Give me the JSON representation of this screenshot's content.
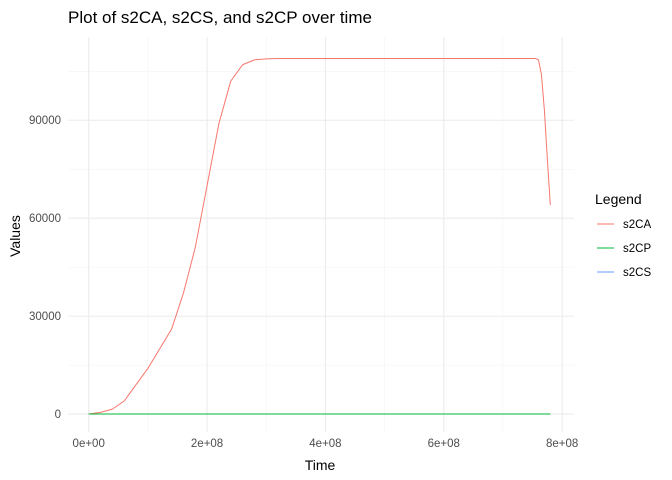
{
  "chart_data": {
    "type": "line",
    "title": "Plot of s2CA, s2CS, and s2CP over time",
    "xlabel": "Time",
    "ylabel": "Values",
    "xlim": [
      -35000000,
      820000000
    ],
    "ylim": [
      -5500000,
      115500000
    ],
    "x_ticks": [
      {
        "value": 0,
        "label": "0e+00"
      },
      {
        "value": 200000000,
        "label": "2e+08"
      },
      {
        "value": 400000000,
        "label": "4e+08"
      },
      {
        "value": 600000000,
        "label": "6e+08"
      },
      {
        "value": 800000000,
        "label": "8e+08"
      }
    ],
    "y_ticks": [
      {
        "value": 0,
        "label": "0"
      },
      {
        "value": 30000,
        "label": "30000"
      },
      {
        "value": 60000,
        "label": "60000"
      },
      {
        "value": 90000,
        "label": "90000"
      }
    ],
    "grid": true,
    "legend": {
      "title": "Legend",
      "position": "right",
      "entries": [
        "s2CA",
        "s2CP",
        "s2CS"
      ]
    },
    "series": [
      {
        "name": "s2CA",
        "color": "#F8766D",
        "x": [
          0,
          20000000,
          40000000,
          60000000,
          80000000,
          100000000,
          120000000,
          140000000,
          160000000,
          180000000,
          200000000,
          220000000,
          240000000,
          260000000,
          280000000,
          300000000,
          320000000,
          400000000,
          500000000,
          600000000,
          700000000,
          755000000,
          760000000,
          765000000,
          770000000,
          775000000,
          780000000
        ],
        "y": [
          0,
          500,
          1500,
          4000,
          9000,
          14000,
          20000,
          26000,
          37000,
          51000,
          70000,
          89000,
          102000,
          107000,
          108500,
          108800,
          108900,
          108900,
          108900,
          108900,
          108900,
          108900,
          108500,
          104000,
          93000,
          78000,
          64000
        ]
      },
      {
        "name": "s2CP",
        "color": "#00BA38",
        "x": [
          0,
          780000000
        ],
        "y": [
          0,
          0
        ]
      },
      {
        "name": "s2CS",
        "color": "#619CFF",
        "x": [
          0,
          780000000
        ],
        "y": [
          0,
          0
        ]
      }
    ]
  }
}
